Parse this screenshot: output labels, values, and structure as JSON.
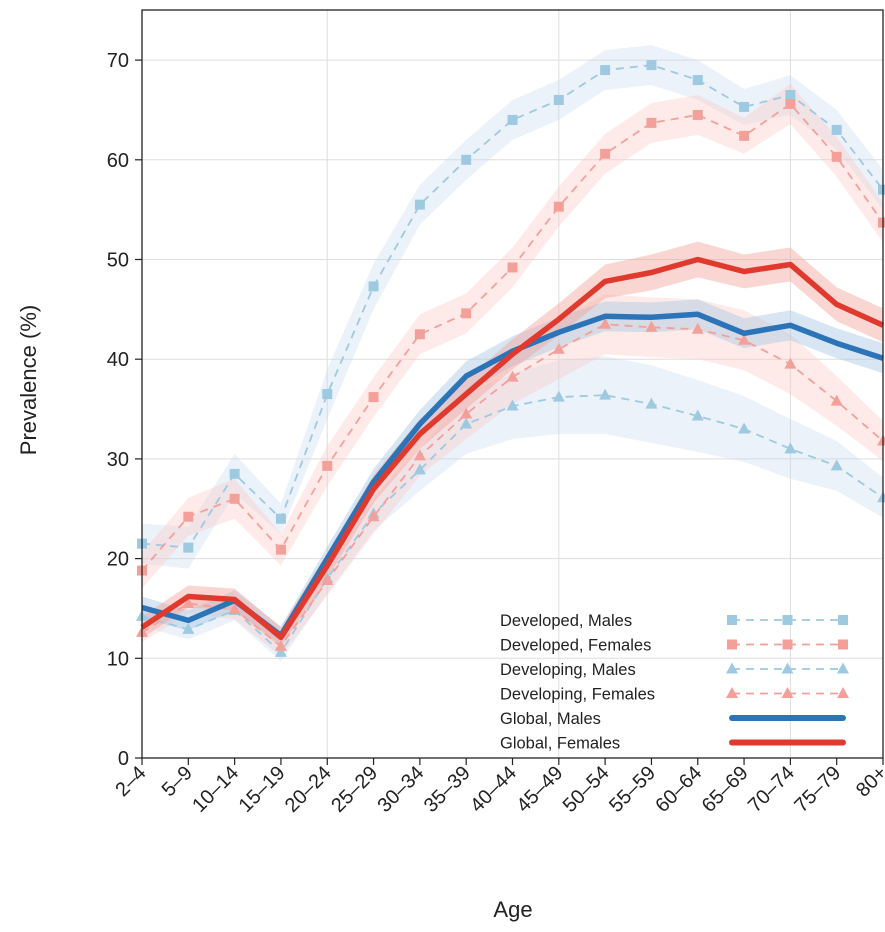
{
  "chart_data": {
    "type": "line",
    "xlabel": "Age",
    "ylabel": "Prevalence (%)",
    "ylim": [
      0,
      70
    ],
    "y_ticks": [
      "0",
      "10",
      "20",
      "30",
      "40",
      "50",
      "60",
      "70"
    ],
    "categories": [
      "2–4",
      "5–9",
      "10–14",
      "15–19",
      "20–24",
      "25–29",
      "30–34",
      "35–39",
      "40–44",
      "45–49",
      "50–54",
      "55–59",
      "60–64",
      "65–69",
      "70–74",
      "75–79",
      "80+"
    ],
    "grid": true,
    "legend_position": "bottom-right",
    "series": [
      {
        "name": "Developed, Males",
        "style": "dashed",
        "marker": "square",
        "color": "#9ecae1",
        "band_color": "#c6dbef",
        "values": [
          21.5,
          21.1,
          28.5,
          24.0,
          36.5,
          47.3,
          55.5,
          60.0,
          64.0,
          66.0,
          69.0,
          69.5,
          68.0,
          65.3,
          66.5,
          63.0,
          57.0
        ],
        "lower": [
          19.5,
          19.0,
          26.5,
          22.5,
          34.0,
          45.0,
          53.5,
          58.0,
          62.0,
          64.0,
          67.0,
          67.5,
          66.0,
          63.5,
          64.5,
          61.0,
          55.0
        ],
        "upper": [
          23.5,
          23.2,
          30.5,
          25.5,
          39.0,
          49.6,
          57.5,
          62.0,
          66.0,
          68.0,
          71.0,
          71.5,
          70.0,
          67.1,
          68.5,
          65.0,
          59.0
        ]
      },
      {
        "name": "Developed, Females",
        "style": "dashed",
        "marker": "square",
        "color": "#f4a09a",
        "band_color": "#fcc5c0",
        "values": [
          18.8,
          24.2,
          26.0,
          20.9,
          29.3,
          36.2,
          42.5,
          44.6,
          49.2,
          55.3,
          60.6,
          63.7,
          64.5,
          62.4,
          65.6,
          60.3,
          53.7
        ],
        "lower": [
          17.0,
          22.3,
          24.0,
          19.3,
          27.3,
          34.2,
          40.5,
          42.6,
          47.2,
          53.3,
          58.6,
          61.7,
          62.5,
          60.6,
          63.6,
          58.3,
          51.7
        ],
        "upper": [
          20.6,
          26.1,
          28.0,
          22.5,
          31.3,
          38.2,
          44.5,
          46.6,
          51.2,
          57.3,
          62.6,
          65.7,
          66.5,
          64.2,
          67.6,
          62.3,
          55.7
        ]
      },
      {
        "name": "Developing, Males",
        "style": "dashed",
        "marker": "triangle",
        "color": "#9ecae1",
        "band_color": "#c6dbef",
        "values": [
          14.2,
          12.9,
          14.8,
          10.6,
          18.0,
          24.5,
          28.9,
          33.5,
          35.3,
          36.2,
          36.4,
          35.5,
          34.3,
          33.0,
          31.0,
          29.3,
          26.1
        ],
        "lower": [
          13.2,
          11.9,
          13.8,
          9.7,
          16.5,
          22.8,
          26.8,
          30.5,
          32.0,
          32.5,
          32.5,
          31.6,
          30.7,
          29.7,
          28.0,
          26.8,
          24.1
        ],
        "upper": [
          15.2,
          13.9,
          15.8,
          11.5,
          19.5,
          26.2,
          31.0,
          36.5,
          38.6,
          39.9,
          40.3,
          39.4,
          37.9,
          36.3,
          34.0,
          31.8,
          28.1
        ]
      },
      {
        "name": "Developing, Females",
        "style": "dashed",
        "marker": "triangle",
        "color": "#f4a09a",
        "band_color": "#fcc5c0",
        "values": [
          12.6,
          15.5,
          14.9,
          11.2,
          17.8,
          24.2,
          30.3,
          34.5,
          38.2,
          41.0,
          43.5,
          43.2,
          43.0,
          41.9,
          39.5,
          35.8,
          31.8
        ],
        "lower": [
          11.6,
          14.5,
          13.9,
          10.2,
          16.3,
          22.5,
          28.3,
          32.0,
          35.5,
          38.0,
          40.5,
          40.2,
          40.0,
          38.9,
          36.5,
          33.3,
          29.8
        ],
        "upper": [
          13.6,
          16.5,
          15.9,
          12.2,
          19.3,
          25.9,
          32.3,
          37.0,
          40.9,
          44.0,
          46.5,
          46.2,
          46.0,
          44.9,
          42.5,
          38.3,
          33.8
        ]
      },
      {
        "name": "Global, Males",
        "style": "solid",
        "marker": "none",
        "color": "#2b74b8",
        "band_color": "#a6c8e3",
        "values": [
          15.1,
          13.8,
          15.8,
          12.3,
          20.0,
          27.7,
          33.5,
          38.3,
          40.8,
          42.7,
          44.3,
          44.2,
          44.5,
          42.6,
          43.4,
          41.6,
          40.1
        ],
        "lower": [
          14.0,
          12.8,
          14.8,
          11.4,
          18.8,
          26.4,
          32.1,
          36.8,
          39.3,
          41.2,
          42.8,
          42.7,
          43.0,
          41.1,
          41.9,
          40.1,
          38.6
        ],
        "upper": [
          16.2,
          14.8,
          16.8,
          13.2,
          21.2,
          29.0,
          34.9,
          39.8,
          42.3,
          44.2,
          45.8,
          45.7,
          46.0,
          44.1,
          44.9,
          43.1,
          41.6
        ]
      },
      {
        "name": "Global, Females",
        "style": "solid",
        "marker": "none",
        "color": "#e03a2f",
        "band_color": "#f3a39e",
        "values": [
          13.1,
          16.2,
          15.9,
          12.1,
          19.3,
          27.0,
          32.5,
          36.5,
          40.5,
          44.0,
          47.8,
          48.7,
          50.0,
          48.8,
          49.5,
          45.5,
          43.4
        ],
        "lower": [
          12.0,
          15.1,
          14.8,
          11.1,
          18.0,
          25.6,
          31.0,
          35.0,
          39.0,
          42.4,
          46.1,
          46.9,
          48.2,
          47.1,
          47.8,
          43.8,
          41.7
        ],
        "upper": [
          14.2,
          17.3,
          17.0,
          13.1,
          20.6,
          28.4,
          34.0,
          38.0,
          42.0,
          45.6,
          49.5,
          50.5,
          51.8,
          50.5,
          51.2,
          47.2,
          45.1
        ]
      }
    ]
  }
}
